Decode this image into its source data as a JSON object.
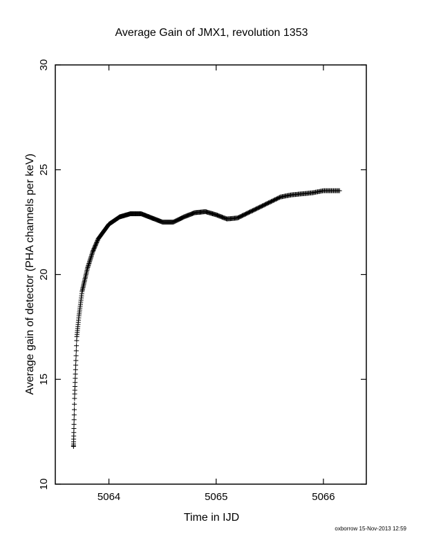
{
  "chart_data": {
    "type": "scatter",
    "title": "Average Gain of JMX1, revolution 1353",
    "xlabel": "Time in IJD",
    "ylabel": "Average gain of detector (PHA channels per keV)",
    "xlim": [
      5063.5,
      5066.4
    ],
    "ylim": [
      10,
      30
    ],
    "x_ticks": [
      5064,
      5065,
      5066
    ],
    "x_tick_labels": [
      "5064",
      "5065",
      "5066"
    ],
    "y_ticks": [
      10,
      15,
      20,
      25,
      30
    ],
    "y_tick_labels": [
      "10",
      "15",
      "20",
      "25",
      "30"
    ],
    "marker": "plus",
    "grid": false,
    "curve_knots": {
      "x": [
        5063.67,
        5063.68,
        5063.7,
        5063.72,
        5063.75,
        5063.8,
        5063.85,
        5063.9,
        5064.0,
        5064.1,
        5064.2,
        5064.3,
        5064.4,
        5064.5,
        5064.6,
        5064.7,
        5064.8,
        5064.9,
        5065.0,
        5065.1,
        5065.2,
        5065.3,
        5065.4,
        5065.5,
        5065.6,
        5065.7,
        5065.8,
        5065.9,
        5066.0,
        5066.1,
        5066.15
      ],
      "y": [
        11.8,
        14.2,
        17.0,
        18.0,
        19.2,
        20.3,
        21.1,
        21.7,
        22.4,
        22.75,
        22.9,
        22.9,
        22.7,
        22.5,
        22.5,
        22.75,
        22.95,
        23.0,
        22.85,
        22.65,
        22.7,
        22.95,
        23.2,
        23.45,
        23.7,
        23.8,
        23.85,
        23.9,
        24.0,
        24.0,
        24.0
      ]
    }
  },
  "footer": {
    "credit": "oxborrow 15-Nov-2013 12:59"
  }
}
